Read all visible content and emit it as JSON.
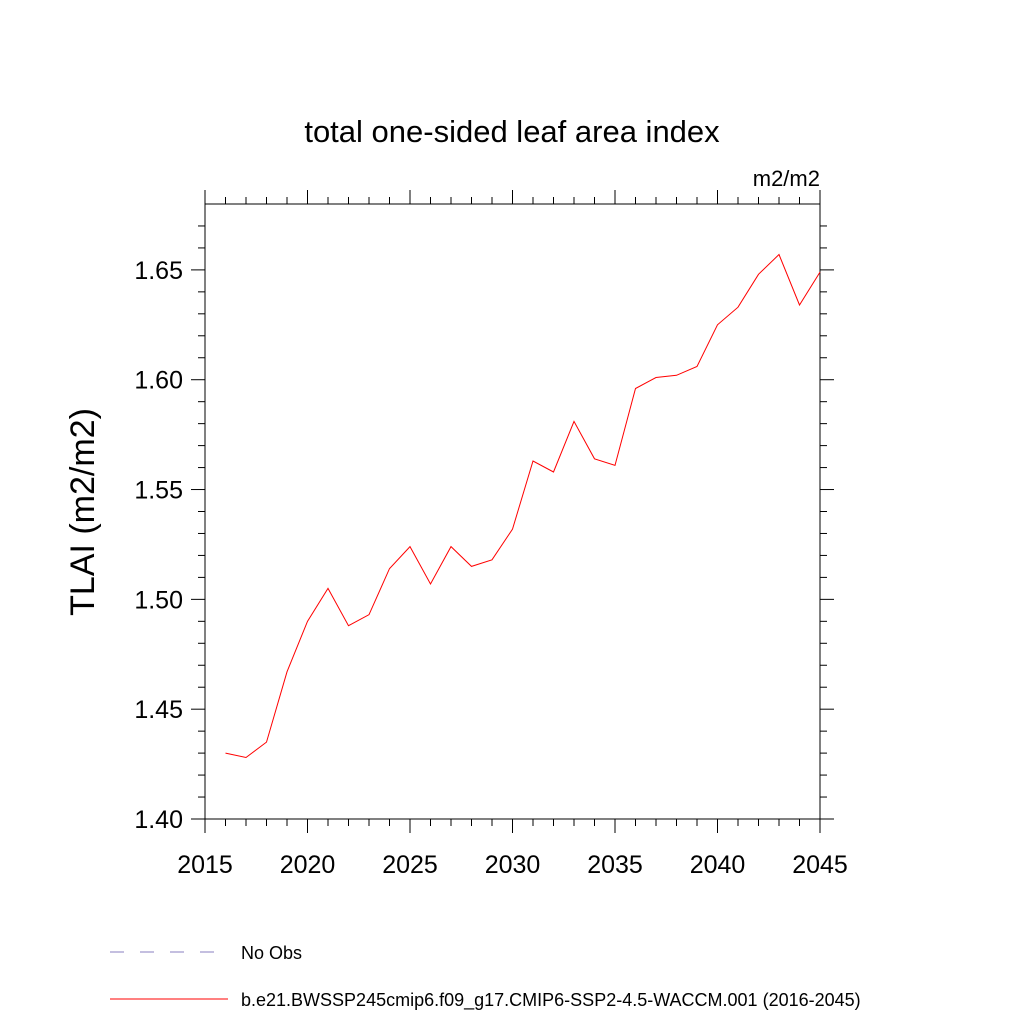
{
  "chart_data": {
    "type": "line",
    "title": "total one-sided leaf area index",
    "units_label": "m2/m2",
    "ylabel": "TLAI  (m2/m2)",
    "xlabel": "",
    "xlim": [
      2015,
      2045
    ],
    "ylim": [
      1.4,
      1.68
    ],
    "xticks": [
      "2015",
      "2020",
      "2025",
      "2030",
      "2035",
      "2040",
      "2045"
    ],
    "yticks": [
      "1.40",
      "1.45",
      "1.50",
      "1.55",
      "1.60",
      "1.65"
    ],
    "grid": false,
    "legend_position": "bottom",
    "series": [
      {
        "name": "b.e21.BWSSP245cmip6.f09_g17.CMIP6-SSP2-4.5-WACCM.001 (2016-2045)",
        "color": "#ff0000",
        "dash": "solid",
        "x": [
          2016,
          2017,
          2018,
          2019,
          2020,
          2021,
          2022,
          2023,
          2024,
          2025,
          2026,
          2027,
          2028,
          2029,
          2030,
          2031,
          2032,
          2033,
          2034,
          2035,
          2036,
          2037,
          2038,
          2039,
          2040,
          2041,
          2042,
          2043,
          2044,
          2045
        ],
        "values": [
          1.43,
          1.428,
          1.435,
          1.467,
          1.49,
          1.505,
          1.488,
          1.493,
          1.514,
          1.524,
          1.507,
          1.524,
          1.515,
          1.518,
          1.532,
          1.563,
          1.558,
          1.581,
          1.564,
          1.561,
          1.596,
          1.601,
          1.602,
          1.606,
          1.625,
          1.633,
          1.648,
          1.657,
          1.634,
          1.649
        ]
      }
    ],
    "legend": [
      {
        "label": "No Obs",
        "color": "#8a7fc0",
        "dash": "dashed"
      },
      {
        "label": "b.e21.BWSSP245cmip6.f09_g17.CMIP6-SSP2-4.5-WACCM.001 (2016-2045)",
        "color": "#ff0000",
        "dash": "solid"
      }
    ]
  }
}
